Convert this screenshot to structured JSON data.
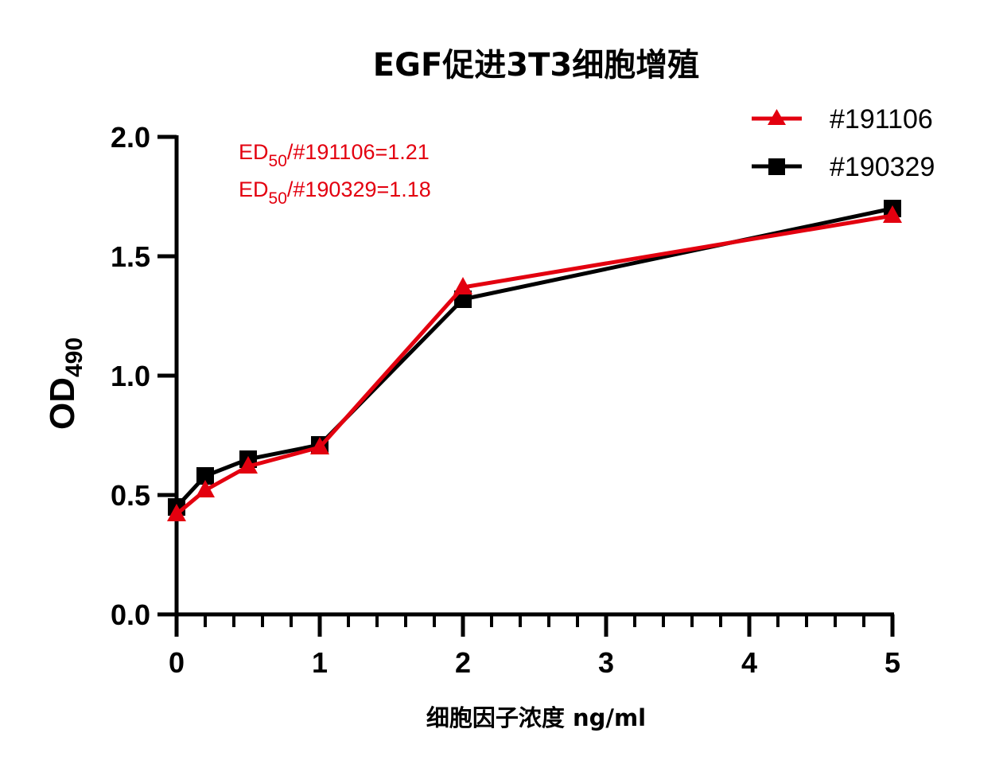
{
  "chart_data": {
    "type": "line",
    "title": "EGF促进3T3细胞增殖",
    "xlabel": "细胞因子浓度 ng/ml",
    "ylabel": "OD",
    "ylabel_subscript": "490",
    "xlim": [
      0,
      5
    ],
    "ylim": [
      0,
      2.0
    ],
    "x_ticks": [
      "0",
      "1",
      "2",
      "3",
      "4",
      "5"
    ],
    "x_minor_tick_step": 0.2,
    "y_ticks": [
      "0.0",
      "0.5",
      "1.0",
      "1.5",
      "2.0"
    ],
    "grid": false,
    "legend_position": "top-right",
    "x": [
      0,
      0.2,
      0.5,
      1,
      2,
      5
    ],
    "series": [
      {
        "name": "#191106",
        "color": "#e3000f",
        "marker": "triangle",
        "values": [
          0.42,
          0.52,
          0.62,
          0.7,
          1.37,
          1.67
        ]
      },
      {
        "name": "#190329",
        "color": "#000000",
        "marker": "square",
        "values": [
          0.45,
          0.58,
          0.65,
          0.71,
          1.32,
          1.7
        ]
      }
    ],
    "annotations": [
      {
        "prefix": "ED",
        "subscript": "50",
        "suffix": "/#191106=1.21",
        "color": "#e3000f"
      },
      {
        "prefix": "ED",
        "subscript": "50",
        "suffix": "/#190329=1.18",
        "color": "#e3000f"
      }
    ]
  }
}
